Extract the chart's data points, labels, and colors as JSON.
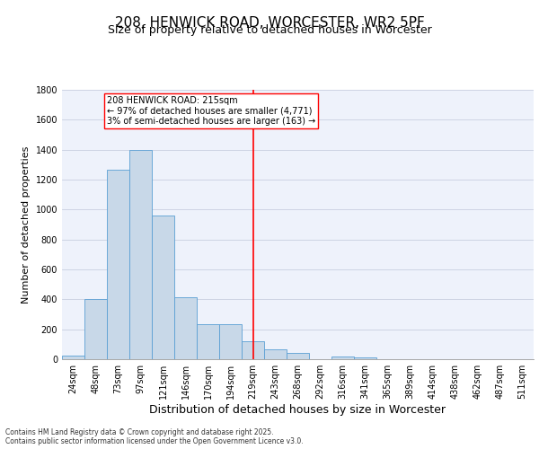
{
  "title": "208, HENWICK ROAD, WORCESTER, WR2 5PF",
  "subtitle": "Size of property relative to detached houses in Worcester",
  "xlabel": "Distribution of detached houses by size in Worcester",
  "ylabel": "Number of detached properties",
  "categories": [
    "24sqm",
    "48sqm",
    "73sqm",
    "97sqm",
    "121sqm",
    "146sqm",
    "170sqm",
    "194sqm",
    "219sqm",
    "243sqm",
    "268sqm",
    "292sqm",
    "316sqm",
    "341sqm",
    "365sqm",
    "389sqm",
    "414sqm",
    "438sqm",
    "462sqm",
    "487sqm",
    "511sqm"
  ],
  "values": [
    25,
    400,
    1265,
    1400,
    960,
    415,
    235,
    235,
    120,
    65,
    45,
    0,
    20,
    10,
    0,
    0,
    0,
    0,
    0,
    0,
    0
  ],
  "bar_color": "#c8d8e8",
  "bar_edge_color": "#5a9fd4",
  "vline_pos": 8.0,
  "annotation_title": "208 HENWICK ROAD: 215sqm",
  "annotation_line1": "← 97% of detached houses are smaller (4,771)",
  "annotation_line2": "3% of semi-detached houses are larger (163) →",
  "ylim": [
    0,
    1800
  ],
  "yticks": [
    0,
    200,
    400,
    600,
    800,
    1000,
    1200,
    1400,
    1600,
    1800
  ],
  "footnote1": "Contains HM Land Registry data © Crown copyright and database right 2025.",
  "footnote2": "Contains public sector information licensed under the Open Government Licence v3.0.",
  "bg_color": "#eef2fb",
  "grid_color": "#c8cfe0",
  "title_fontsize": 11,
  "subtitle_fontsize": 9,
  "xlabel_fontsize": 9,
  "ylabel_fontsize": 8,
  "tick_fontsize": 7,
  "annotation_fontsize": 7,
  "footnote_fontsize": 5.5
}
